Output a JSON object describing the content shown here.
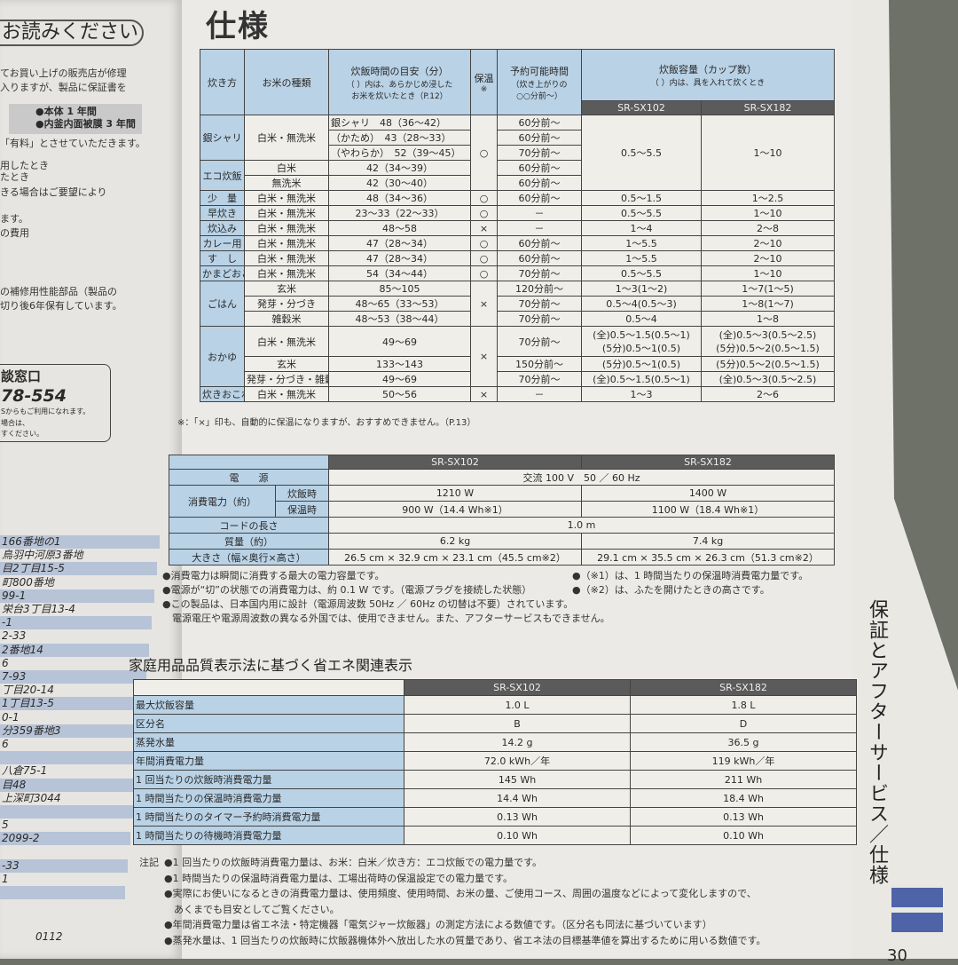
{
  "left_page": {
    "title": "お読みください",
    "lines": [
      "てお買い上げの販売店が修理",
      "入りますが、製品に保証書を"
    ],
    "warranty": [
      "●本体 1 年間",
      "●内釜内面被膜 3 年間"
    ],
    "lines2": [
      "「有料」とさせていただきます。",
      "用したとき",
      "たとき",
      "きる場合はご要望により",
      "ます。",
      "の費用",
      "の補修用性能部品（製品の",
      "切り後6年保有しています。"
    ],
    "contact_title": "談窓口",
    "contact_number": "78-554",
    "contact_lines": [
      "Sからもご利用になれます。",
      "場合は、",
      "すください。"
    ],
    "addresses": [
      "166番地の1",
      "鳥羽中河原3番地",
      "目2丁目15-5",
      "町800番地",
      "99-1",
      "栄台3丁目13-4",
      "-1",
      "2-33",
      "2番地14",
      "6",
      "7-93",
      "丁目20-14",
      "1丁目13-5",
      "0-1",
      "分359番地3",
      "6",
      "",
      "八倉75-1",
      "目48",
      "上深町3044",
      "",
      "5",
      "2099-2",
      "",
      "-33",
      "1",
      ""
    ],
    "page_code": "0112"
  },
  "title": "仕様",
  "main_table": {
    "headers": {
      "method": "炊き方",
      "rice": "お米の種類",
      "time": "炊飯時間の目安（分）",
      "time_sub": "（ ）内は、あらかじめ浸した",
      "time_sub2": "お米を炊いたとき（P.12）",
      "keep": "保温",
      "keep_mark": "※",
      "timer": "予約可能時間",
      "timer_sub": "（炊き上がりの",
      "timer_sub2": "○○分前～）",
      "capacity": "炊飯容量（カップ数）",
      "capacity_sub": "（ ）内は、具を入れて炊くとき",
      "model1": "SR-SX102",
      "model2": "SR-SX182"
    },
    "rows": [
      {
        "method": "銀シャリ",
        "method_span": 3,
        "rice": "白米・無洗米",
        "rice_span": 3,
        "time": "銀シャリ　48（36～42）",
        "keep": "○",
        "keep_span": 5,
        "timer": "60分前～",
        "cap1": "0.5～5.5",
        "cap2": "1～10",
        "cap_span": 5
      },
      {
        "time": "（かため）　43（28～33）",
        "timer": "60分前～"
      },
      {
        "time": "（やわらか）　52（39～45）",
        "timer": "70分前～"
      },
      {
        "method": "エコ炊飯",
        "method_span": 2,
        "rice": "白米",
        "time": "42（34～39）",
        "timer": "60分前～"
      },
      {
        "rice": "無洗米",
        "time": "42（30～40）",
        "timer": "60分前～"
      },
      {
        "method": "少　量",
        "rice": "白米・無洗米",
        "time": "48（34～36）",
        "keep": "○",
        "timer": "60分前～",
        "cap1": "0.5～1.5",
        "cap2": "1～2.5"
      },
      {
        "method": "早炊き",
        "rice": "白米・無洗米",
        "time": "23～33（22～33）",
        "keep": "○",
        "timer": "－",
        "cap1": "0.5～5.5",
        "cap2": "1～10"
      },
      {
        "method": "炊込み",
        "rice": "白米・無洗米",
        "time": "48～58",
        "keep": "×",
        "timer": "－",
        "cap1": "1～4",
        "cap2": "2～8"
      },
      {
        "method": "カレー用",
        "rice": "白米・無洗米",
        "time": "47（28～34）",
        "keep": "○",
        "timer": "60分前～",
        "cap1": "1～5.5",
        "cap2": "2～10"
      },
      {
        "method": "す　し",
        "rice": "白米・無洗米",
        "time": "47（28～34）",
        "keep": "○",
        "timer": "60分前～",
        "cap1": "1～5.5",
        "cap2": "2～10"
      },
      {
        "method": "かまどおこげ",
        "rice": "白米・無洗米",
        "time": "54（34～44）",
        "keep": "○",
        "timer": "70分前～",
        "cap1": "0.5～5.5",
        "cap2": "1～10"
      },
      {
        "method": "ごはん",
        "method_span": 3,
        "rice": "玄米",
        "time": "85～105",
        "keep": "×",
        "keep_span": 3,
        "timer": "120分前～",
        "cap1": "1～3(1～2)",
        "cap2": "1～7(1～5)"
      },
      {
        "rice": "発芽・分づき",
        "time": "48～65（33～53）",
        "timer": "70分前～",
        "cap1": "0.5～4(0.5～3)",
        "cap2": "1～8(1～7)"
      },
      {
        "rice": "雑穀米",
        "time": "48～53（38～44）",
        "timer": "70分前～",
        "cap1": "0.5～4",
        "cap2": "1～8"
      },
      {
        "method": "おかゆ",
        "method_span": 3,
        "rice": "白米・無洗米",
        "time": "49～69",
        "keep": "×",
        "keep_span": 3,
        "timer": "70分前～",
        "cap1": "(全)0.5～1.5(0.5～1)\n(5分)0.5～1(0.5)",
        "cap2": "(全)0.5～3(0.5～2.5)\n(5分)0.5～2(0.5～1.5)",
        "tall": true
      },
      {
        "rice": "玄米",
        "time": "133～143",
        "timer": "150分前～",
        "cap1": "(5分)0.5～1(0.5)",
        "cap2": "(5分)0.5～2(0.5～1.5)"
      },
      {
        "rice": "発芽・分づき・雑穀米",
        "time": "49～69",
        "timer": "70分前～",
        "cap1": "(全)0.5～1.5(0.5～1)",
        "cap2": "(全)0.5～3(0.5～2.5)"
      },
      {
        "method": "炊きおこわ",
        "rice": "白米・無洗米",
        "time": "50～56",
        "keep": "×",
        "timer": "－",
        "cap1": "1～3",
        "cap2": "2～6"
      }
    ],
    "footnote": "※：「×」印も、自動的に保温になりますが、おすすめできません。（P.13）"
  },
  "spec_table": {
    "model1": "SR-SX102",
    "model2": "SR-SX182",
    "rows": [
      {
        "label": "電　　源",
        "both": "交流 100 V　50 ／ 60 Hz"
      },
      {
        "label": "消費電力（約）",
        "label_span": 2,
        "sub": "炊飯時",
        "v1": "1210 W",
        "v2": "1400 W"
      },
      {
        "sub": "保温時",
        "v1": "900 W（14.4 Wh※1）",
        "v2": "1100 W（18.4 Wh※1）"
      },
      {
        "label": "コードの長さ",
        "both": "1.0 m"
      },
      {
        "label": "質量（約）",
        "v1": "6.2 kg",
        "v2": "7.4 kg"
      },
      {
        "label": "大きさ（幅×奥行×高さ）",
        "v1": "26.5 cm × 32.9 cm × 23.1 cm（45.5 cm※2）",
        "v2": "29.1 cm × 35.5 cm × 26.3 cm（51.3 cm※2）"
      }
    ],
    "notes_left": [
      "●消費電力は瞬間に消費する最大の電力容量です。",
      "●電源が“切”の状態での消費電力は、約 0.1 W です。（電源プラグを接続した状態）",
      "●この製品は、日本国内用に設計（電源周波数 50Hz ／ 60Hz の切替は不要）されています。",
      "　電源電圧や電源周波数の異なる外国では、使用できません。また、アフターサービスもできません。"
    ],
    "notes_right": [
      "●（※1）は、1 時間当たりの保温時消費電力量です。",
      "●（※2）は、ふたを開けたときの高さです。"
    ]
  },
  "eco": {
    "title": "家庭用品品質表示法に基づく省エネ関連表示",
    "model1": "SR-SX102",
    "model2": "SR-SX182",
    "rows": [
      {
        "label": "最大炊飯容量",
        "v1": "1.0 L",
        "v2": "1.8 L"
      },
      {
        "label": "区分名",
        "v1": "B",
        "v2": "D"
      },
      {
        "label": "蒸発水量",
        "v1": "14.2 g",
        "v2": "36.5 g"
      },
      {
        "label": "年間消費電力量",
        "v1": "72.0 kWh／年",
        "v2": "119 kWh／年"
      },
      {
        "label": "1 回当たりの炊飯時消費電力量",
        "v1": "145 Wh",
        "v2": "211 Wh"
      },
      {
        "label": "1 時間当たりの保温時消費電力量",
        "v1": "14.4 Wh",
        "v2": "18.4 Wh"
      },
      {
        "label": "1 時間当たりのタイマー予約時消費電力量",
        "v1": "0.13 Wh",
        "v2": "0.13 Wh"
      },
      {
        "label": "1 時間当たりの待機時消費電力量",
        "v1": "0.10 Wh",
        "v2": "0.10 Wh"
      }
    ],
    "notes_label": "注記",
    "notes": [
      "●1 回当たりの炊飯時消費電力量は、お米：白米／炊き方：エコ炊飯での電力量です。",
      "●1 時間当たりの保温時消費電力量は、工場出荷時の保温設定での電力量です。",
      "●実際にお使いになるときの消費電力量は、使用頻度、使用時間、お米の量、ご使用コース、周囲の温度などによって変化しますので、",
      "　あくまでも目安としてご覧ください。",
      "●年間消費電力量は省エネ法・特定機器「電気ジャー炊飯器」の測定方法による数値です。（区分名も同法に基づいています）",
      "●蒸発水量は、1 回当たりの炊飯時に炊飯器機体外へ放出した水の質量であり、省エネ法の目標基準値を算出するために用いる数値です。"
    ]
  },
  "side_tab": "保証とアフターサービス／仕様",
  "page_number": "30",
  "colors": {
    "label_blue": "#b9d2e6",
    "header_dark": "#5b5b5b",
    "tab_blue": "#4f63a8",
    "address_bar": "#b7c3d6"
  }
}
